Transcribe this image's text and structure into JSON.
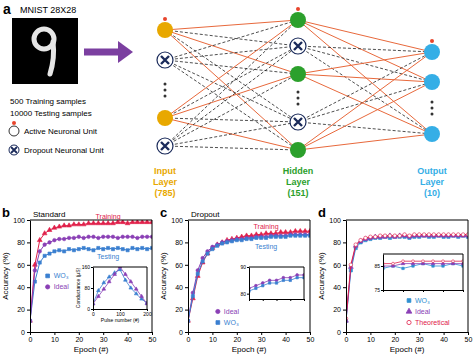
{
  "diagram": {
    "panel": "a",
    "image_title": "MNIST 28X28",
    "samples": [
      "500 Training samples",
      "10000 Testing samples"
    ],
    "unit_legend": [
      "Active Neuronal Unit",
      "Dropout Neuronal Unit"
    ],
    "layers": [
      {
        "lines": [
          "Input",
          "Layer",
          "(785)"
        ],
        "color": "#e8a800"
      },
      {
        "lines": [
          "Hidden",
          "Layer",
          "(151)"
        ],
        "color": "#2ca02c"
      },
      {
        "lines": [
          "Output",
          "Layer",
          "(10)"
        ],
        "color": "#35aee6"
      }
    ]
  },
  "chart_data": [
    {
      "type": "line",
      "panel": "b",
      "title": "Standard",
      "xlabel": "Epoch (#)",
      "ylabel": "Accuracy (%)",
      "x": [
        0,
        2,
        4,
        6,
        8,
        10,
        12,
        14,
        16,
        18,
        20,
        22,
        24,
        26,
        28,
        30,
        32,
        34,
        36,
        38,
        40,
        42,
        44,
        46,
        48,
        50
      ],
      "xlim": [
        0,
        50
      ],
      "xticks": [
        0,
        10,
        20,
        30,
        40,
        50
      ],
      "ylim": [
        0,
        100
      ],
      "yticks": [
        0,
        20,
        40,
        60,
        80,
        100
      ],
      "legend": "left",
      "annotations": [
        "Training",
        "Testing"
      ],
      "series": [
        {
          "color": "#e0204a",
          "marker": "triangle",
          "values": [
            10,
            60,
            82,
            88,
            91,
            93,
            94,
            95,
            95,
            96,
            96,
            96,
            97,
            97,
            97,
            97,
            97,
            97,
            98,
            98,
            97,
            98,
            98,
            98,
            98,
            98
          ]
        },
        {
          "name": "WO₃",
          "color": "#3a7fd0",
          "marker": "square",
          "values": [
            10,
            45,
            62,
            68,
            70,
            72,
            73,
            72,
            74,
            73,
            74,
            75,
            74,
            73,
            75,
            74,
            75,
            74,
            75,
            74,
            73,
            75,
            74,
            75,
            74,
            75
          ]
        },
        {
          "name": "Ideal",
          "color": "#8a3fb5",
          "marker": "circle",
          "values": [
            10,
            55,
            72,
            78,
            80,
            82,
            83,
            83,
            84,
            84,
            85,
            84,
            85,
            85,
            84,
            85,
            85,
            85,
            84,
            85,
            85,
            85,
            84,
            85,
            85,
            85
          ]
        }
      ]
    },
    {
      "type": "line",
      "xlabel": "Pulse number (#)",
      "ylabel": "Conductance (μS)",
      "x": [
        0,
        20,
        40,
        60,
        80,
        100,
        120,
        140,
        160,
        180,
        200
      ],
      "xlim": [
        0,
        200
      ],
      "xticks": [
        0,
        100,
        200
      ],
      "ylim": [
        0,
        160
      ],
      "yticks": [
        0,
        80,
        160
      ],
      "series": [
        {
          "color": "#3a7fd0",
          "marker": "triangle",
          "values": [
            20,
            70,
            100,
            122,
            138,
            150,
            110,
            80,
            58,
            38,
            22
          ]
        },
        {
          "color": "#8a3fb5",
          "marker": "triangle",
          "values": [
            20,
            48,
            76,
            104,
            132,
            160,
            132,
            104,
            76,
            48,
            20
          ]
        }
      ]
    },
    {
      "type": "line",
      "panel": "c",
      "title": "Dropout",
      "xlabel": "Epoch (#)",
      "ylabel": "Accuracy (%)",
      "x": [
        0,
        2,
        4,
        6,
        8,
        10,
        12,
        14,
        16,
        18,
        20,
        22,
        24,
        26,
        28,
        30,
        32,
        34,
        36,
        38,
        40,
        42,
        44,
        46,
        48,
        50
      ],
      "xlim": [
        0,
        50
      ],
      "xticks": [
        0,
        10,
        20,
        30,
        40,
        50
      ],
      "ylim": [
        0,
        100
      ],
      "yticks": [
        0,
        20,
        40,
        60,
        80,
        100
      ],
      "legend": "bottom-left",
      "annotations": [
        "Training",
        "Testing"
      ],
      "series": [
        {
          "color": "#e0204a",
          "marker": "triangle",
          "values": [
            10,
            30,
            50,
            62,
            70,
            75,
            78,
            80,
            82,
            83,
            84,
            85,
            86,
            86,
            87,
            87,
            88,
            88,
            88,
            89,
            89,
            89,
            90,
            90,
            90,
            90
          ]
        },
        {
          "name": "Ideal",
          "color": "#8a3fb5",
          "marker": "circle",
          "values": [
            10,
            35,
            55,
            66,
            72,
            76,
            78,
            80,
            81,
            82,
            83,
            83,
            84,
            84,
            85,
            85,
            85,
            86,
            86,
            86,
            86,
            87,
            87,
            87,
            87,
            87
          ]
        },
        {
          "name": "WO₃",
          "color": "#3a7fd0",
          "marker": "square",
          "values": [
            10,
            32,
            52,
            63,
            70,
            74,
            77,
            79,
            80,
            81,
            82,
            82,
            83,
            83,
            84,
            84,
            84,
            85,
            85,
            85,
            85,
            86,
            86,
            86,
            86,
            86
          ]
        }
      ]
    },
    {
      "type": "line",
      "tick_labels": "y",
      "x": [
        10,
        15,
        20,
        25,
        30,
        35,
        40,
        45,
        50
      ],
      "xlim": [
        10,
        50
      ],
      "xticks": [
        10,
        20,
        30,
        40,
        50
      ],
      "ylim": [
        78,
        90
      ],
      "yticks": [
        80,
        90
      ],
      "series": [
        {
          "color": "#8a3fb5",
          "marker": "circle",
          "values": [
            82,
            83,
            84,
            85,
            85,
            86,
            86,
            87,
            87
          ]
        },
        {
          "color": "#3a7fd0",
          "marker": "square",
          "values": [
            81,
            82,
            83,
            84,
            84,
            85,
            85,
            86,
            86
          ]
        }
      ]
    },
    {
      "type": "line",
      "panel": "d",
      "xlabel": "Epoch (#)",
      "ylabel": "Accuracy (%)",
      "x": [
        0,
        2,
        4,
        6,
        8,
        10,
        12,
        14,
        16,
        18,
        20,
        22,
        24,
        26,
        28,
        30,
        32,
        34,
        36,
        38,
        40,
        42,
        44,
        46,
        48,
        50
      ],
      "xlim": [
        0,
        50
      ],
      "xticks": [
        0,
        10,
        20,
        30,
        40,
        50
      ],
      "ylim": [
        0,
        100
      ],
      "yticks": [
        0,
        20,
        40,
        60,
        80,
        100
      ],
      "legend": "bottom-right",
      "series": [
        {
          "name": "WO₃",
          "color": "#2f8fd0",
          "marker": "square",
          "values": [
            10,
            55,
            75,
            80,
            82,
            83,
            84,
            84,
            85,
            84,
            85,
            85,
            85,
            84,
            85,
            85,
            86,
            85,
            85,
            86,
            85,
            85,
            86,
            85,
            86,
            85
          ]
        },
        {
          "name": "Ideal",
          "color": "#8a3fb5",
          "marker": "triangle",
          "values": [
            10,
            58,
            77,
            81,
            83,
            84,
            85,
            85,
            85,
            86,
            85,
            86,
            86,
            85,
            86,
            86,
            86,
            86,
            86,
            86,
            86,
            86,
            86,
            86,
            86,
            86
          ]
        },
        {
          "name": "Theoretical",
          "color": "#e0204a",
          "marker": "open-circle",
          "values": [
            12,
            60,
            78,
            82,
            84,
            85,
            85,
            86,
            86,
            86,
            86,
            86,
            87,
            86,
            87,
            87,
            87,
            87,
            87,
            87,
            87,
            87,
            87,
            87,
            87,
            87
          ]
        }
      ]
    },
    {
      "type": "line",
      "tick_labels": "y",
      "x": [
        10,
        15,
        20,
        25,
        30,
        35,
        40,
        45,
        50
      ],
      "xlim": [
        10,
        50
      ],
      "xticks": [
        10,
        20,
        30,
        40,
        50
      ],
      "ylim": [
        75,
        90
      ],
      "yticks": [
        75,
        85
      ],
      "series": [
        {
          "color": "#2f8fd0",
          "marker": "square",
          "values": [
            84,
            85,
            84,
            85,
            86,
            85,
            85,
            86,
            85
          ]
        },
        {
          "color": "#8a3fb5",
          "marker": "triangle",
          "values": [
            85,
            85,
            86,
            86,
            86,
            86,
            86,
            86,
            86
          ]
        },
        {
          "color": "#e0204a",
          "marker": "open-circle",
          "values": [
            86,
            86,
            87,
            87,
            87,
            87,
            87,
            87,
            87
          ]
        }
      ]
    }
  ]
}
